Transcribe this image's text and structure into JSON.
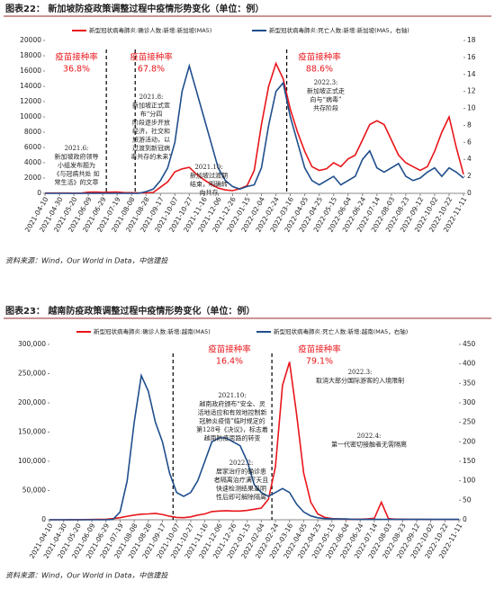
{
  "chart_data": [
    {
      "type": "line",
      "title": "图表22： 新加坡防疫政策调整过程中疫情形势变化（单位：例）",
      "categories": [
        "2021-04-10",
        null,
        "2021-04-30",
        null,
        "2021-05-20",
        null,
        "2021-06-09",
        null,
        "2021-06-29",
        null,
        "2021-07-19",
        null,
        "2021-08-08",
        null,
        "2021-08-28",
        null,
        "2021-09-17",
        null,
        "2021-10-07",
        null,
        "2021-10-27",
        null,
        "2021-11-16",
        null,
        "2021-12-06",
        null,
        "2021-12-26",
        null,
        "2022-01-15",
        null,
        "2022-02-04",
        null,
        "2022-02-24",
        null,
        "2022-03-16",
        null,
        "2022-04-05",
        null,
        "2022-04-25",
        null,
        "2022-05-15",
        null,
        "2022-06-04",
        null,
        "2022-06-24",
        null,
        "2022-07-14",
        null,
        "2022-08-03",
        null,
        "2022-08-23",
        null,
        "2022-09-12",
        null,
        "2022-10-02",
        null,
        "2022-10-22",
        null,
        "2022-11-11"
      ],
      "series": [
        {
          "name": "新型冠状病毒肺炎:确诊人数:新增:新加坡(MA5)",
          "color": "#e8161b",
          "values": [
            30,
            40,
            40,
            30,
            20,
            20,
            150,
            160,
            130,
            150,
            180,
            100,
            80,
            60,
            60,
            120,
            800,
            1500,
            2800,
            3200,
            3400,
            2500,
            1800,
            1200,
            700,
            450,
            350,
            600,
            1000,
            3000,
            9000,
            14000,
            17000,
            15000,
            11000,
            8000,
            5500,
            3500,
            3000,
            3200,
            4000,
            3500,
            4500,
            5000,
            7000,
            9000,
            9500,
            9000,
            7000,
            5000,
            4000,
            3500,
            3000,
            3500,
            5500,
            8000,
            10000,
            6000,
            2500
          ]
        },
        {
          "name": "新型冠状病毒肺炎:死亡人数:新增:新加坡(MA5，右轴)",
          "color": "#1f4e8c",
          "axis": "y2",
          "values": [
            0,
            0,
            0,
            0,
            0,
            0,
            0,
            0,
            0,
            0,
            0,
            0,
            0,
            0,
            0.2,
            0.5,
            1.5,
            3,
            6,
            12,
            15,
            12,
            9,
            6,
            3,
            1.5,
            0.8,
            0.5,
            0.8,
            1,
            3,
            8,
            12,
            13,
            9,
            6,
            3,
            1.5,
            1,
            1.5,
            2,
            1,
            1.5,
            2,
            4,
            5,
            3,
            2.5,
            3,
            3.5,
            2,
            1.5,
            1.8,
            2.5,
            3,
            2,
            3,
            2.5,
            1.8
          ]
        }
      ],
      "ylim": [
        0,
        20000
      ],
      "yticks": [
        0,
        2000,
        4000,
        6000,
        8000,
        10000,
        12000,
        14000,
        16000,
        18000,
        20000
      ],
      "y2lim": [
        0,
        18
      ],
      "y2ticks": [
        0,
        2,
        4,
        6,
        8,
        10,
        12,
        14,
        16,
        18
      ],
      "vaccination": [
        {
          "label": "疫苗接种率",
          "rate": "36.8%"
        },
        {
          "label": "疫苗接种率",
          "rate": "67.8%"
        },
        {
          "label": "疫苗接种率",
          "rate": "88.6%"
        }
      ],
      "annotations": [
        {
          "lines": [
            "2021.6:",
            "新加坡政府领导",
            "小组发布题为",
            "《与冠病共处 如",
            "常生活》的文章"
          ]
        },
        {
          "lines": [
            "2021.8:",
            "新加坡正式宣",
            "布“分四",
            "阶段逐步开放",
            "经济，社交和",
            "旅游活动，以",
            "过渡到新冠病",
            "毒共存的未来”"
          ]
        },
        {
          "lines": [
            "2021.10:",
            "新加坡过渡期",
            "结束，明确转",
            "向共存"
          ]
        },
        {
          "lines": [
            "2022.3:",
            "新加坡正式走",
            "向与“病毒”",
            "共存阶段"
          ]
        }
      ],
      "source": "资料来源：Wind，Our World in Data，中信建投"
    },
    {
      "type": "line",
      "title": "图表23： 越南防疫政策调整过程中疫情形势变化（单位：例）",
      "categories": [
        "2021-04-10",
        null,
        "2021-04-30",
        null,
        "2021-05-20",
        null,
        "2021-06-09",
        null,
        "2021-06-29",
        null,
        "2021-07-19",
        null,
        "2021-08-08",
        null,
        "2021-08-28",
        null,
        "2021-09-17",
        null,
        "2021-10-07",
        null,
        "2021-10-27",
        null,
        "2021-11-16",
        null,
        "2021-12-06",
        null,
        "2021-12-26",
        null,
        "2022-01-15",
        null,
        "2022-02-04",
        null,
        "2022-02-24",
        null,
        "2022-03-16",
        null,
        "2022-04-05",
        null,
        "2022-04-25",
        null,
        "2022-05-15",
        null,
        "2022-06-04",
        null,
        "2022-06-24",
        null,
        "2022-07-14",
        null,
        "2022-08-03",
        null,
        "2022-08-23",
        null,
        "2022-09-12",
        null,
        "2022-10-02",
        null,
        "2022-10-22",
        null,
        "2022-11-11"
      ],
      "series": [
        {
          "name": "新型冠状病毒肺炎:确诊人数:新增:越南(MA5)",
          "color": "#e8161b",
          "values": [
            10,
            20,
            50,
            100,
            200,
            300,
            400,
            600,
            1000,
            2000,
            3500,
            6000,
            8000,
            9500,
            10000,
            11000,
            9000,
            6000,
            4000,
            3500,
            5000,
            8000,
            10000,
            14000,
            15000,
            15500,
            15000,
            15000,
            16000,
            18000,
            20000,
            35000,
            90000,
            230000,
            270000,
            180000,
            80000,
            30000,
            10000,
            4000,
            2000,
            1500,
            1000,
            1000,
            1000,
            1500,
            2500,
            30000,
            2000,
            1000,
            1000,
            800,
            700,
            600,
            500,
            500,
            400,
            400,
            400
          ]
        },
        {
          "name": "新型冠状病毒肺炎:死亡人数:新增:越南(MA5，右轴)",
          "color": "#1f4e8c",
          "axis": "y2",
          "values": [
            0,
            0,
            0,
            0,
            0,
            0,
            0,
            0,
            0,
            1,
            20,
            100,
            250,
            370,
            330,
            250,
            200,
            120,
            70,
            60,
            70,
            100,
            150,
            200,
            210,
            210,
            200,
            190,
            150,
            90,
            70,
            60,
            70,
            80,
            70,
            40,
            20,
            10,
            5,
            3,
            2,
            2,
            2,
            1,
            1,
            1,
            1,
            1,
            1,
            1,
            1,
            1,
            1,
            1,
            1,
            1,
            1,
            1,
            1
          ]
        }
      ],
      "ylim": [
        0,
        300000
      ],
      "yticks": [
        0,
        {
          "value": 50000,
          "label": "50,000"
        },
        {
          "value": 100000,
          "label": "100,000"
        },
        {
          "value": 150000,
          "label": "150,000"
        },
        {
          "value": 200000,
          "label": "200,000"
        },
        {
          "value": 250000,
          "label": "250,000"
        },
        {
          "value": 300000,
          "label": "300,000"
        }
      ],
      "y2lim": [
        0,
        450
      ],
      "y2ticks": [
        0,
        50,
        100,
        150,
        200,
        250,
        300,
        350,
        400,
        450
      ],
      "vaccination": [
        {
          "label": "疫苗接种率",
          "rate": "16.4%"
        },
        {
          "label": "疫苗接种率",
          "rate": "79.1%"
        }
      ],
      "annotations": [
        {
          "lines": [
            "2021.10:",
            "越南政府颁布“安全、灵",
            "活地适应和有效地控制新",
            "冠肺炎疫情”临时规定的",
            "第128号《决议》，标志着",
            "越南防疫思路的转变"
          ]
        },
        {
          "lines": [
            "2022.2:",
            "居家治疗的确诊患",
            "者隔离治疗满7天且",
            "快速检测结果呈阴",
            "性后即可解除隔离"
          ]
        },
        {
          "lines": [
            "2022.3:",
            "取消大部分国际游客的入境限制"
          ]
        },
        {
          "lines": [
            "2022.4:",
            "第一代密切接触者无需隔离"
          ]
        }
      ],
      "source": "资料来源：Wind，Our World in Data，中信建投"
    }
  ]
}
